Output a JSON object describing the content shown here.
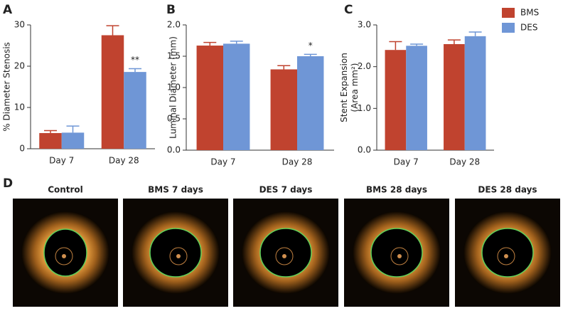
{
  "chart_data": [
    {
      "type": "bar",
      "title": "A",
      "ylabel": [
        "% Diameter Stenosis"
      ],
      "categories": [
        "Day 7",
        "Day 28"
      ],
      "series": [
        {
          "color": "#c0432f",
          "values": [
            3.8,
            27.5
          ],
          "errors": [
            0.6,
            2.3
          ]
        },
        {
          "color": "#6f96d6",
          "values": [
            3.9,
            18.6
          ],
          "errors": [
            1.6,
            0.8
          ],
          "value_annotations": [
            null,
            "**"
          ]
        }
      ],
      "ylim": [
        0,
        30
      ],
      "yticks": [
        0,
        10,
        20,
        30
      ]
    },
    {
      "type": "bar",
      "title": "B",
      "ylabel": [
        "Luminal Diameter (mm)"
      ],
      "categories": [
        "Day 7",
        "Day 28"
      ],
      "series": [
        {
          "color": "#c0432f",
          "values": [
            1.67,
            1.29
          ],
          "errors": [
            0.05,
            0.06
          ]
        },
        {
          "color": "#6f96d6",
          "values": [
            1.7,
            1.5
          ],
          "errors": [
            0.04,
            0.03
          ],
          "value_annotations": [
            null,
            "*"
          ]
        }
      ],
      "ylim": [
        0,
        2.0
      ],
      "yticks": [
        {
          "value": 0,
          "label": "0.0"
        },
        {
          "value": 0.5,
          "label": "0.5"
        },
        {
          "value": 1,
          "label": "1.0"
        },
        {
          "value": 1.5,
          "label": "1.5"
        },
        {
          "value": 2,
          "label": "2.0"
        }
      ]
    },
    {
      "type": "bar",
      "title": "C",
      "ylabel": [
        "Stent Expansion",
        "(Area mm²)"
      ],
      "categories": [
        "Day 7",
        "Day 28"
      ],
      "series": [
        {
          "name": "BMS",
          "color": "#c0432f",
          "values": [
            2.4,
            2.54
          ],
          "errors": [
            0.2,
            0.1
          ]
        },
        {
          "name": "DES",
          "color": "#6f96d6",
          "values": [
            2.5,
            2.73
          ],
          "errors": [
            0.04,
            0.1
          ]
        }
      ],
      "ylim": [
        0,
        3.0
      ],
      "yticks": [
        {
          "value": 0,
          "label": "0.0"
        },
        {
          "value": 1,
          "label": "1.0"
        },
        {
          "value": 2,
          "label": "2.0"
        },
        {
          "value": 3,
          "label": "3.0"
        }
      ],
      "legend": "top-right"
    }
  ],
  "images": {
    "label": "D",
    "captions": [
      "Control",
      "BMS 7 days",
      "DES 7 days",
      "BMS 28 days",
      "DES 28 days"
    ]
  }
}
